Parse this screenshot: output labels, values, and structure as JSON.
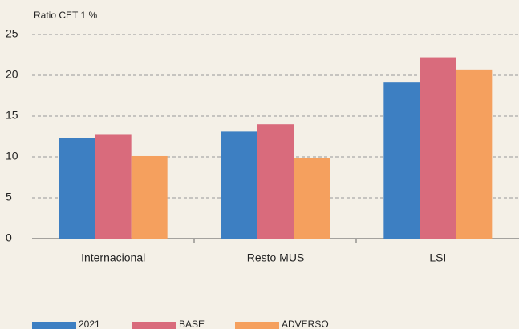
{
  "chart_data": {
    "type": "bar",
    "y_axis_label": "Ratio CET 1 %",
    "categories": [
      "Internacional",
      "Resto MUS",
      "LSI"
    ],
    "series": [
      {
        "name": "2021",
        "color": "#3d7fc2",
        "values": [
          12.3,
          13.1,
          19.1
        ]
      },
      {
        "name": "BASE",
        "color": "#d96b7c",
        "values": [
          12.7,
          14.0,
          22.2
        ]
      },
      {
        "name": "ADVERSO",
        "color": "#f5a05e",
        "values": [
          10.1,
          9.9,
          20.7
        ]
      }
    ],
    "ylim": [
      0,
      25
    ],
    "yticks": [
      0,
      5,
      10,
      15,
      20,
      25
    ],
    "grid": true,
    "legend": "bottom"
  }
}
